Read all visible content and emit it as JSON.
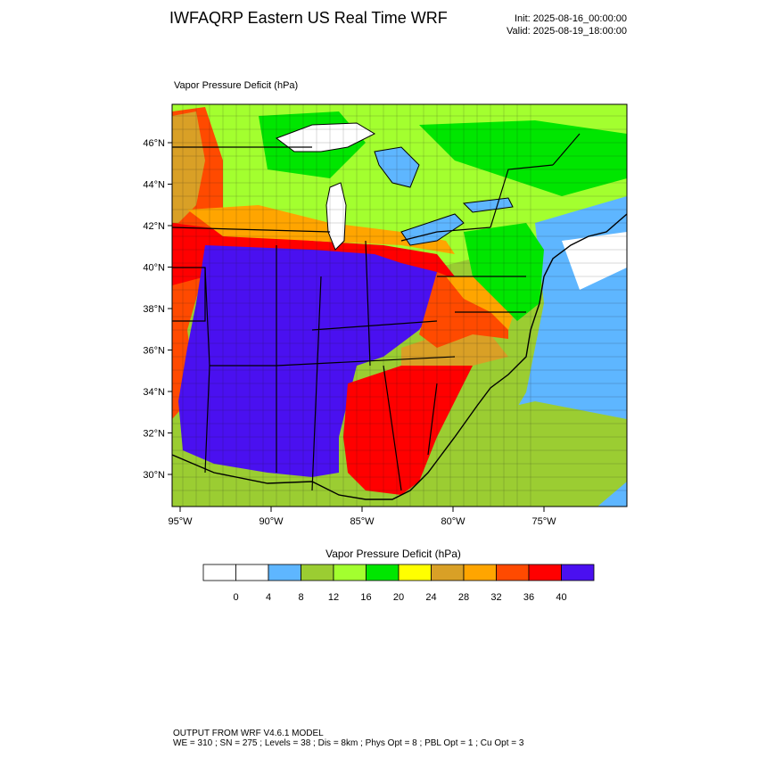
{
  "header": {
    "title": "IWFAQRP Eastern US Real Time WRF",
    "init": "Init: 2025-08-16_00:00:00",
    "valid": "Valid: 2025-08-19_18:00:00"
  },
  "map": {
    "caption": "Vapor Pressure Deficit   (hPa)",
    "lat_labels": [
      "46°N",
      "44°N",
      "42°N",
      "40°N",
      "38°N",
      "36°N",
      "34°N",
      "32°N",
      "30°N"
    ],
    "lon_labels": [
      "95°W",
      "90°W",
      "85°W",
      "80°W",
      "75°W"
    ]
  },
  "legend": {
    "title": "Vapor Pressure Deficit  (hPa)",
    "colors": [
      "#ffffff",
      "#ffffff",
      "#5eb6ff",
      "#9bcd32",
      "#a3ff2f",
      "#00e600",
      "#ffff00",
      "#d9a026",
      "#ffa500",
      "#ff4a00",
      "#ff0000",
      "#4a10f0"
    ],
    "ticks": [
      "0",
      "4",
      "8",
      "12",
      "16",
      "20",
      "24",
      "28",
      "32",
      "36",
      "40"
    ]
  },
  "footer": {
    "line1": "OUTPUT FROM WRF V4.6.1 MODEL",
    "line2": "WE = 310 ; SN = 275 ; Levels = 38 ; Dis = 8km ; Phys Opt = 8 ; PBL Opt = 1 ; Cu Opt = 3"
  }
}
